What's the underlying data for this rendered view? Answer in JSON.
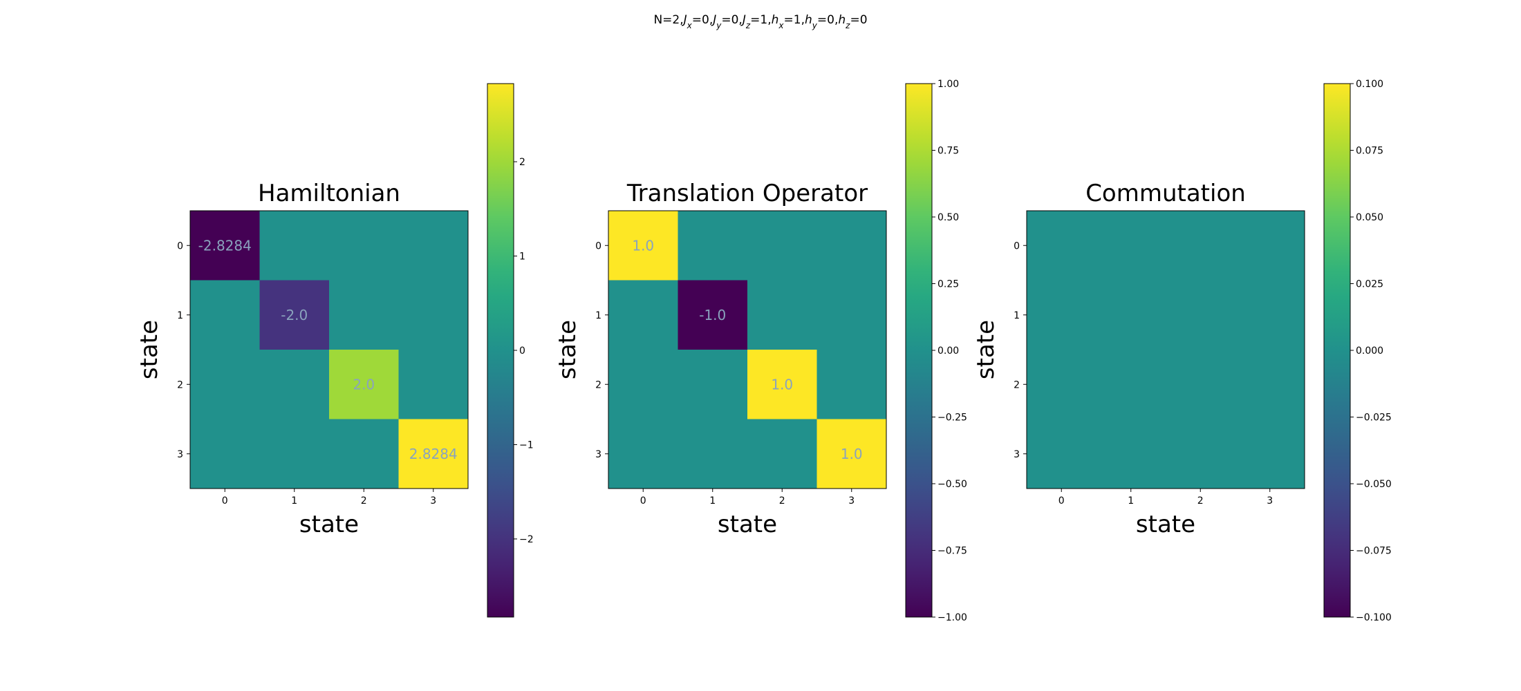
{
  "figure": {
    "suptitle": {
      "parts": [
        {
          "t": "N=2,",
          "sub": ""
        },
        {
          "t": "J",
          "sub": "x",
          "italic": true
        },
        {
          "t": "=0,",
          "sub": ""
        },
        {
          "t": "J",
          "sub": "y",
          "italic": true
        },
        {
          "t": "=0,",
          "sub": ""
        },
        {
          "t": "J",
          "sub": "z",
          "italic": true
        },
        {
          "t": "=1,",
          "sub": ""
        },
        {
          "t": "h",
          "sub": "x",
          "italic": true
        },
        {
          "t": "=1,",
          "sub": ""
        },
        {
          "t": "h",
          "sub": "y",
          "italic": true
        },
        {
          "t": "=0,",
          "sub": ""
        },
        {
          "t": "h",
          "sub": "z",
          "italic": true
        },
        {
          "t": "=0",
          "sub": ""
        }
      ]
    }
  },
  "chart_data": [
    {
      "type": "heatmap",
      "title": "Hamiltonian",
      "xlabel": "state",
      "ylabel": "state",
      "x_ticks": [
        "0",
        "1",
        "2",
        "3"
      ],
      "y_ticks": [
        "0",
        "1",
        "2",
        "3"
      ],
      "colormap": "viridis",
      "vmin": -2.8284,
      "vmax": 2.8284,
      "values": [
        [
          -2.8284,
          0,
          0,
          0
        ],
        [
          0,
          -2.0,
          0,
          0
        ],
        [
          0,
          0,
          2.0,
          0
        ],
        [
          0,
          0,
          0,
          2.8284
        ]
      ],
      "cell_labels": [
        {
          "row": 0,
          "col": 0,
          "text": "-2.8284"
        },
        {
          "row": 1,
          "col": 1,
          "text": "-2.0"
        },
        {
          "row": 2,
          "col": 2,
          "text": "2.0"
        },
        {
          "row": 3,
          "col": 3,
          "text": "2.8284"
        }
      ],
      "colorbar_ticks": [
        {
          "value": -2,
          "label": "−2"
        },
        {
          "value": -1,
          "label": "−1"
        },
        {
          "value": 0,
          "label": "0"
        },
        {
          "value": 1,
          "label": "1"
        },
        {
          "value": 2,
          "label": "2"
        }
      ]
    },
    {
      "type": "heatmap",
      "title": "Translation Operator",
      "xlabel": "state",
      "ylabel": "state",
      "x_ticks": [
        "0",
        "1",
        "2",
        "3"
      ],
      "y_ticks": [
        "0",
        "1",
        "2",
        "3"
      ],
      "colormap": "viridis",
      "vmin": -1.0,
      "vmax": 1.0,
      "values": [
        [
          1.0,
          0,
          0,
          0
        ],
        [
          0,
          -1.0,
          0,
          0
        ],
        [
          0,
          0,
          1.0,
          0
        ],
        [
          0,
          0,
          0,
          1.0
        ]
      ],
      "cell_labels": [
        {
          "row": 0,
          "col": 0,
          "text": "1.0"
        },
        {
          "row": 1,
          "col": 1,
          "text": "-1.0"
        },
        {
          "row": 2,
          "col": 2,
          "text": "1.0"
        },
        {
          "row": 3,
          "col": 3,
          "text": "1.0"
        }
      ],
      "colorbar_ticks": [
        {
          "value": -1.0,
          "label": "−1.00"
        },
        {
          "value": -0.75,
          "label": "−0.75"
        },
        {
          "value": -0.5,
          "label": "−0.50"
        },
        {
          "value": -0.25,
          "label": "−0.25"
        },
        {
          "value": 0.0,
          "label": "0.00"
        },
        {
          "value": 0.25,
          "label": "0.25"
        },
        {
          "value": 0.5,
          "label": "0.50"
        },
        {
          "value": 0.75,
          "label": "0.75"
        },
        {
          "value": 1.0,
          "label": "1.00"
        }
      ]
    },
    {
      "type": "heatmap",
      "title": "Commutation",
      "xlabel": "state",
      "ylabel": "state",
      "x_ticks": [
        "0",
        "1",
        "2",
        "3"
      ],
      "y_ticks": [
        "0",
        "1",
        "2",
        "3"
      ],
      "colormap": "viridis",
      "vmin": -0.1,
      "vmax": 0.1,
      "values": [
        [
          0,
          0,
          0,
          0
        ],
        [
          0,
          0,
          0,
          0
        ],
        [
          0,
          0,
          0,
          0
        ],
        [
          0,
          0,
          0,
          0
        ]
      ],
      "cell_labels": [],
      "colorbar_ticks": [
        {
          "value": -0.1,
          "label": "−0.100"
        },
        {
          "value": -0.075,
          "label": "−0.075"
        },
        {
          "value": -0.05,
          "label": "−0.050"
        },
        {
          "value": -0.025,
          "label": "−0.025"
        },
        {
          "value": 0.0,
          "label": "0.000"
        },
        {
          "value": 0.025,
          "label": "0.025"
        },
        {
          "value": 0.05,
          "label": "0.050"
        },
        {
          "value": 0.075,
          "label": "0.075"
        },
        {
          "value": 0.1,
          "label": "0.100"
        }
      ]
    }
  ]
}
